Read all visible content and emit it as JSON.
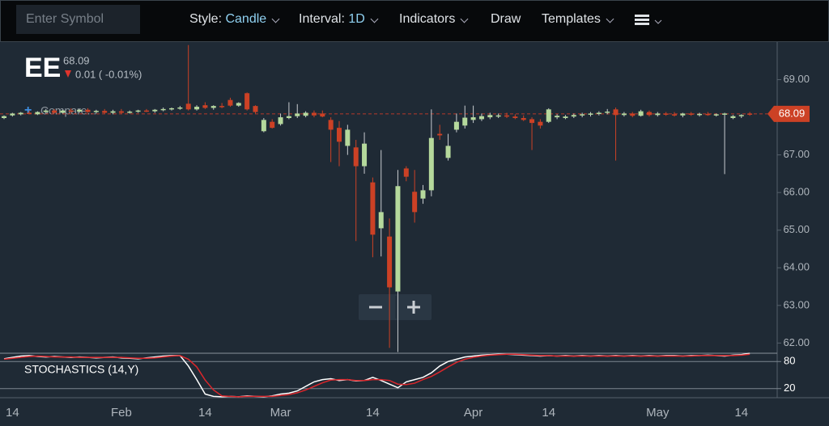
{
  "toolbar": {
    "symbol_placeholder": "Enter Symbol",
    "style_label": "Style:",
    "style_value": "Candle",
    "interval_label": "Interval:",
    "interval_value": "1D",
    "indicators": "Indicators",
    "draw": "Draw",
    "templates": "Templates"
  },
  "header": {
    "symbol": "EE",
    "price": "68.09",
    "change": "0.01 ( -0.01%)",
    "compare": "Compare..."
  },
  "chart_data": [
    {
      "type": "candlestick",
      "up_color": "#b5d99c",
      "down_color": "#cc4125",
      "categories": [
        null,
        "14",
        null,
        null,
        null,
        null,
        null,
        null,
        null,
        null,
        null,
        null,
        null,
        null,
        "Feb",
        null,
        null,
        null,
        null,
        null,
        null,
        null,
        null,
        null,
        "14",
        null,
        null,
        null,
        null,
        null,
        null,
        null,
        null,
        "Mar",
        null,
        null,
        null,
        null,
        null,
        null,
        null,
        null,
        null,
        null,
        "14",
        null,
        null,
        null,
        null,
        null,
        null,
        null,
        null,
        null,
        null,
        null,
        "Apr",
        null,
        null,
        null,
        null,
        null,
        null,
        null,
        null,
        "14",
        null,
        null,
        null,
        null,
        null,
        null,
        null,
        null,
        null,
        null,
        null,
        null,
        "May",
        null,
        null,
        null,
        null,
        null,
        null,
        null,
        null,
        null,
        "14",
        null
      ],
      "open": [
        67.98,
        68.05,
        68.08,
        68.12,
        68.08,
        68.14,
        68.18,
        68.12,
        68.18,
        68.15,
        68.2,
        68.14,
        68.17,
        68.12,
        68.16,
        68.12,
        68.15,
        68.18,
        68.16,
        68.2,
        68.22,
        68.24,
        68.36,
        68.21,
        68.32,
        68.25,
        68.3,
        68.46,
        68.31,
        68.64,
        68.3,
        67.63,
        67.88,
        67.82,
        67.98,
        68.03,
        68.04,
        68.12,
        68.1,
        67.93,
        67.72,
        67.24,
        67.2,
        66.7,
        66.27,
        65.05,
        64.83,
        63.37,
        66.64,
        66.02,
        65.84,
        66.06,
        67.56,
        66.92,
        67.67,
        67.78,
        67.93,
        67.95,
        68.0,
        68.03,
        68.05,
        68.02,
        67.98,
        67.95,
        67.88,
        67.88,
        68.0,
        67.98,
        68.02,
        68.06,
        68.08,
        68.1,
        68.12,
        68.21,
        68.06,
        68.1,
        68.04,
        68.14,
        68.06,
        68.1,
        68.08,
        68.05,
        68.1,
        68.07,
        68.09,
        68.06,
        68.08,
        67.98,
        68.03,
        68.1
      ],
      "high": [
        68.05,
        68.12,
        68.14,
        68.18,
        68.16,
        68.22,
        68.22,
        68.2,
        68.24,
        68.22,
        68.24,
        68.2,
        68.22,
        68.2,
        68.22,
        68.18,
        68.2,
        68.22,
        68.22,
        68.26,
        68.26,
        68.3,
        69.92,
        68.32,
        68.4,
        68.32,
        68.38,
        68.52,
        68.4,
        68.66,
        68.32,
        67.98,
        67.95,
        68.1,
        68.4,
        68.35,
        68.16,
        68.18,
        68.18,
        68.0,
        67.9,
        67.8,
        67.4,
        67.6,
        66.4,
        67.13,
        65.31,
        66.6,
        66.7,
        66.6,
        66.2,
        68.21,
        67.8,
        67.56,
        68.1,
        68.31,
        68.31,
        68.1,
        68.12,
        68.1,
        68.12,
        68.08,
        68.05,
        68.0,
        67.95,
        68.24,
        68.08,
        68.06,
        68.1,
        68.12,
        68.14,
        68.16,
        68.22,
        68.26,
        68.14,
        68.14,
        68.2,
        68.18,
        68.14,
        68.14,
        68.14,
        68.12,
        68.14,
        68.12,
        68.14,
        68.1,
        68.12,
        68.06,
        68.08,
        68.14
      ],
      "low": [
        67.95,
        68.02,
        68.05,
        68.08,
        68.06,
        68.1,
        68.1,
        68.1,
        68.12,
        68.12,
        68.12,
        68.1,
        68.1,
        68.08,
        68.1,
        68.1,
        68.12,
        68.14,
        68.12,
        68.16,
        68.18,
        68.2,
        68.18,
        68.18,
        68.22,
        68.2,
        68.24,
        68.28,
        68.28,
        68.18,
        68.1,
        67.6,
        67.7,
        67.78,
        67.95,
        67.98,
        68.0,
        68.0,
        68.0,
        66.81,
        66.7,
        67.0,
        64.71,
        66.5,
        64.28,
        64.3,
        61.87,
        61.76,
        66.3,
        65.2,
        65.7,
        65.9,
        67.4,
        66.85,
        67.6,
        67.7,
        67.85,
        67.9,
        67.95,
        67.98,
        67.98,
        67.95,
        67.9,
        67.13,
        67.7,
        67.85,
        67.95,
        67.95,
        67.98,
        68.0,
        68.02,
        68.05,
        68.08,
        66.85,
        68.02,
        68.0,
        68.02,
        68.02,
        68.02,
        68.04,
        68.02,
        68.0,
        68.04,
        68.02,
        68.04,
        68.02,
        66.49,
        67.95,
        67.98,
        68.04
      ],
      "close": [
        68.03,
        68.1,
        68.12,
        68.1,
        68.14,
        68.18,
        68.12,
        68.18,
        68.15,
        68.2,
        68.14,
        68.17,
        68.12,
        68.16,
        68.12,
        68.15,
        68.18,
        68.16,
        68.2,
        68.22,
        68.24,
        68.26,
        68.21,
        68.28,
        68.25,
        68.3,
        68.27,
        68.31,
        68.38,
        68.21,
        68.14,
        67.93,
        67.72,
        68.0,
        68.03,
        68.1,
        68.12,
        68.05,
        68.02,
        67.67,
        67.35,
        67.67,
        66.7,
        67.3,
        64.88,
        65.48,
        63.48,
        66.17,
        66.42,
        65.48,
        66.06,
        67.45,
        67.52,
        67.24,
        67.88,
        67.99,
        68.0,
        68.03,
        68.06,
        68.05,
        68.02,
        67.98,
        67.93,
        67.85,
        67.78,
        68.21,
        68.04,
        68.02,
        68.06,
        68.08,
        68.1,
        68.12,
        68.15,
        68.06,
        68.1,
        68.04,
        68.16,
        68.06,
        68.1,
        68.08,
        68.05,
        68.1,
        68.07,
        68.09,
        68.06,
        68.08,
        68.1,
        68.03,
        68.06,
        68.09
      ],
      "ylim": [
        61.75,
        70.0
      ],
      "yticks": [
        {
          "value": 62,
          "label": "62.00"
        },
        {
          "value": 63,
          "label": "63.00"
        },
        {
          "value": 64,
          "label": "64.00"
        },
        {
          "value": 65,
          "label": "65.00"
        },
        {
          "value": 66,
          "label": "66.00"
        },
        {
          "value": 67,
          "label": "67.00"
        },
        {
          "value": 68,
          "label": "68.00"
        },
        {
          "value": 69,
          "label": "69.00"
        }
      ]
    },
    {
      "type": "line",
      "title": "STOCHASTICS (14,Y)",
      "ylim": [
        0,
        100
      ],
      "yticks": [
        20,
        80
      ],
      "grid": true,
      "series": [
        {
          "color": "#ffffff",
          "values": [
            86,
            89,
            92,
            93,
            91,
            90,
            91,
            90,
            89,
            90,
            89,
            88,
            89,
            90,
            88,
            87,
            86,
            88,
            90,
            92,
            93,
            93,
            70,
            40,
            8,
            3,
            2,
            3,
            2,
            4,
            3,
            2,
            4,
            8,
            10,
            15,
            25,
            35,
            40,
            42,
            38,
            40,
            37,
            38,
            45,
            38,
            30,
            22,
            35,
            40,
            45,
            55,
            70,
            80,
            85,
            90,
            92,
            94,
            95,
            96,
            96,
            95,
            94,
            93,
            92,
            93,
            92,
            93,
            92,
            93,
            92,
            93,
            92,
            93,
            92,
            93,
            92,
            93,
            92,
            93,
            93,
            92,
            93,
            93,
            94,
            93,
            92,
            94,
            95,
            98
          ]
        },
        {
          "color": "#d9262b",
          "values": [
            85,
            87,
            89,
            91,
            92,
            91,
            90,
            90,
            90,
            89,
            89,
            89,
            89,
            89,
            89,
            88,
            87,
            87,
            88,
            90,
            92,
            93,
            85,
            68,
            39,
            17,
            4,
            3,
            2,
            3,
            3,
            3,
            3,
            5,
            7,
            11,
            17,
            25,
            33,
            39,
            40,
            40,
            38,
            38,
            40,
            40,
            38,
            30,
            29,
            32,
            40,
            47,
            57,
            68,
            78,
            85,
            89,
            92,
            94,
            95,
            96,
            96,
            95,
            94,
            93,
            93,
            92,
            92,
            92,
            92,
            92,
            92,
            92,
            92,
            92,
            92,
            92,
            92,
            92,
            92,
            92,
            92,
            92,
            93,
            93,
            93,
            93,
            93,
            94,
            96
          ]
        }
      ]
    }
  ]
}
